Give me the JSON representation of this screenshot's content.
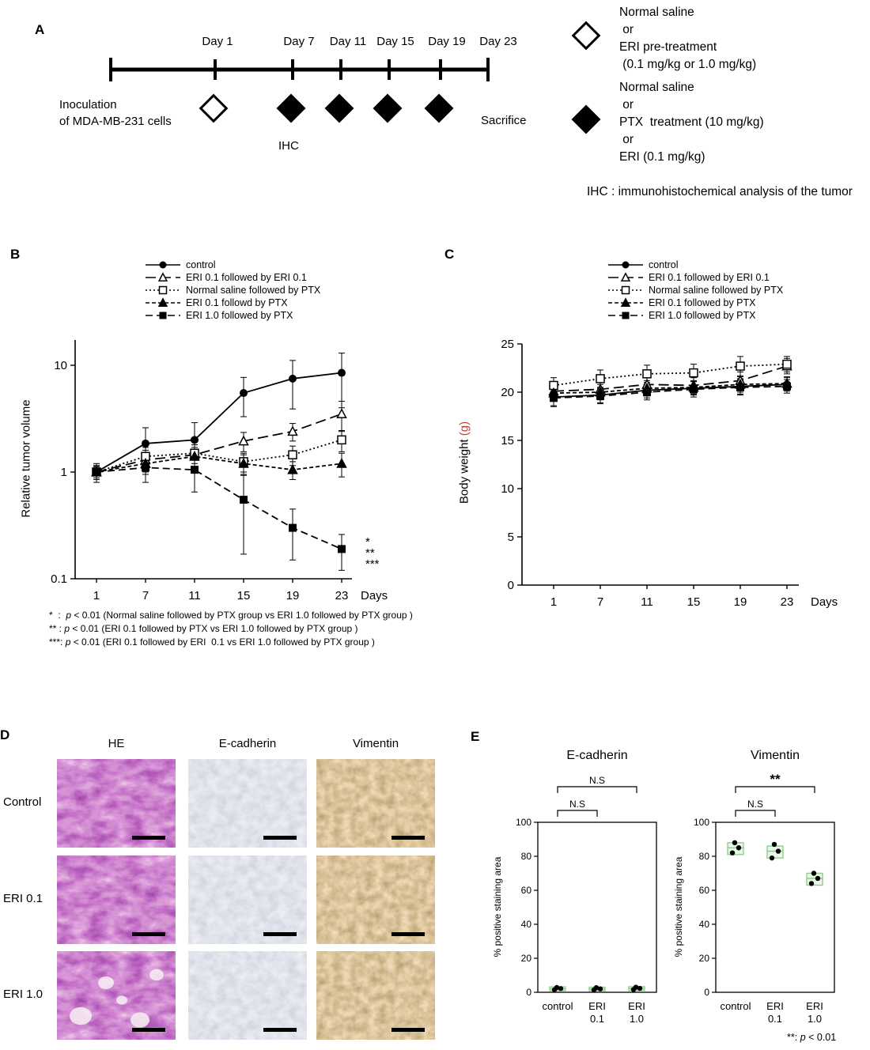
{
  "figure": {
    "panel_a": {
      "label": "A",
      "day_labels": [
        "Day 1",
        "Day 7",
        "Day 11",
        "Day 15",
        "Day 19",
        "Day 23"
      ],
      "inoculation_line1": "Inoculation",
      "inoculation_line2": "of MDA-MB-231 cells",
      "ihc": "IHC",
      "sacrifice": "Sacrifice",
      "legend_open": [
        "Normal saline",
        " or",
        "ERI pre-treatment",
        " (0.1 mg/kg or 1.0 mg/kg)"
      ],
      "legend_filled": [
        "Normal saline",
        " or",
        "PTX  treatment (10 mg/kg)",
        " or",
        "ERI (0.1 mg/kg)"
      ],
      "ihc_note": "IHC : immunohistochemical analysis of the tumor"
    },
    "panel_b": {
      "label": "B",
      "ylabel": "Relative tumor volume",
      "footnotes": [
        {
          "sym": "*  :  ",
          "p": "p",
          "rest": " < 0.01 (Normal saline followed by PTX group vs ERI 1.0 followed by PTX group )"
        },
        {
          "sym": "** : ",
          "p": "p",
          "rest": " < 0.01 (ERI 0.1 followed by PTX vs ERI 1.0 followed by PTX group )"
        },
        {
          "sym": "***: ",
          "p": "p",
          "rest": " < 0.01 (ERI 0.1 followed by ERI  0.1 vs ERI 1.0 followed by PTX group )"
        }
      ]
    },
    "panel_c": {
      "label": "C",
      "ylabel_main": "Body weight ",
      "ylabel_unit": "(g)"
    },
    "panel_d": {
      "label": "D",
      "col_headers": [
        "HE",
        "E-cadherin",
        "Vimentin"
      ],
      "row_labels": [
        "Control",
        "ERI 0.1",
        "ERI 1.0"
      ]
    },
    "panel_e": {
      "label": "E",
      "footnote": {
        "sym": "**: ",
        "p": "p",
        "rest": " < 0.01"
      }
    }
  },
  "chart_data": [
    {
      "id": "tumor-volume",
      "type": "line",
      "title": "",
      "xlabel": "Days",
      "ylabel": "Relative tumor volume",
      "x": [
        1,
        7,
        11,
        15,
        19,
        23
      ],
      "yscale": "log",
      "ylim": [
        0.1,
        15
      ],
      "yticks": [
        10,
        1,
        0.1
      ],
      "series": [
        {
          "name": "control",
          "marker": "circle-filled",
          "dash": "solid",
          "values": [
            1.0,
            1.85,
            2.0,
            5.5,
            7.5,
            8.5
          ],
          "errors": [
            0.2,
            0.75,
            0.9,
            2.2,
            3.6,
            4.5
          ]
        },
        {
          "name": "ERI 0.1 followed by ERI 0.1",
          "marker": "triangle-open",
          "dash": "long",
          "values": [
            1.0,
            1.3,
            1.45,
            1.95,
            2.4,
            3.5
          ],
          "errors": [
            0.15,
            0.3,
            0.35,
            0.4,
            0.45,
            1.1
          ]
        },
        {
          "name": "Normal saline followed by PTX",
          "marker": "square-open",
          "dash": "dotted",
          "values": [
            1.0,
            1.4,
            1.5,
            1.25,
            1.45,
            2.0
          ],
          "errors": [
            0.15,
            0.3,
            0.3,
            0.25,
            0.3,
            0.45
          ]
        },
        {
          "name": "ERI 0.1 followd by PTX",
          "marker": "triangle-filled",
          "dash": "short",
          "values": [
            1.0,
            1.2,
            1.4,
            1.2,
            1.05,
            1.2
          ],
          "errors": [
            0.12,
            0.25,
            0.3,
            0.25,
            0.2,
            0.3
          ]
        },
        {
          "name": "ERI 1.0 followed by PTX",
          "marker": "square-filled",
          "dash": "med",
          "values": [
            1.0,
            1.1,
            1.05,
            0.55,
            0.3,
            0.19
          ],
          "errors": [
            0.12,
            0.3,
            0.4,
            0.38,
            0.15,
            0.07
          ]
        }
      ],
      "annotations": [
        "*",
        "**",
        "***"
      ]
    },
    {
      "id": "body-weight",
      "type": "line",
      "title": "",
      "xlabel": "Days",
      "ylabel": "Body weight (g)",
      "x": [
        1,
        7,
        11,
        15,
        19,
        23
      ],
      "yscale": "linear",
      "ylim": [
        0,
        25
      ],
      "yticks": [
        25,
        20,
        15,
        10,
        5,
        0
      ],
      "series": [
        {
          "name": "control",
          "marker": "circle-filled",
          "dash": "solid",
          "values": [
            19.5,
            19.7,
            20.2,
            20.4,
            20.6,
            20.8
          ],
          "errors": [
            0.9,
            0.8,
            0.8,
            0.7,
            0.8,
            0.7
          ]
        },
        {
          "name": "ERI 0.1 followed by ERI 0.1",
          "marker": "triangle-open",
          "dash": "long",
          "values": [
            20.1,
            20.3,
            20.8,
            20.7,
            21.2,
            22.7
          ],
          "errors": [
            0.8,
            0.8,
            0.9,
            0.8,
            0.9,
            0.8
          ]
        },
        {
          "name": "Normal saline followed by PTX",
          "marker": "square-open",
          "dash": "dotted",
          "values": [
            20.7,
            21.4,
            21.9,
            22.0,
            22.7,
            22.9
          ],
          "errors": [
            0.8,
            0.9,
            0.9,
            0.9,
            1.0,
            0.8
          ]
        },
        {
          "name": "ERI 0.1 followed by PTX",
          "marker": "triangle-filled",
          "dash": "short",
          "values": [
            19.9,
            20.0,
            20.4,
            20.5,
            20.8,
            20.9
          ],
          "errors": [
            0.8,
            0.8,
            0.8,
            0.7,
            0.8,
            0.7
          ]
        },
        {
          "name": "ERI 1.0 followed by PTX",
          "marker": "square-filled",
          "dash": "med",
          "values": [
            19.4,
            19.6,
            20.0,
            20.3,
            20.5,
            20.6
          ],
          "errors": [
            0.9,
            0.8,
            0.8,
            0.8,
            0.8,
            0.7
          ]
        }
      ]
    },
    {
      "id": "ecadherin-staining",
      "type": "scatter",
      "title": "E-cadherin",
      "ylabel": "% positive staining area",
      "ylim": [
        0,
        100
      ],
      "yticks": [
        0,
        20,
        40,
        60,
        80,
        100
      ],
      "categories": [
        [
          "control"
        ],
        [
          "ERI",
          "0.1"
        ],
        [
          "ERI",
          "1.0"
        ]
      ],
      "points": [
        [
          1.5,
          2.2,
          2.8
        ],
        [
          1.4,
          2.0,
          2.7
        ],
        [
          1.6,
          2.3,
          3.0
        ]
      ],
      "box": [
        {
          "lo": 1.0,
          "hi": 3.2,
          "med": 2.1
        },
        {
          "lo": 0.9,
          "hi": 3.0,
          "med": 2.0
        },
        {
          "lo": 1.1,
          "hi": 3.3,
          "med": 2.2
        }
      ],
      "brackets": [
        {
          "from": 0,
          "to": 1,
          "label": "N.S",
          "level": 1
        },
        {
          "from": 0,
          "to": 2,
          "label": "N.S",
          "level": 2
        }
      ]
    },
    {
      "id": "vimentin-staining",
      "type": "scatter",
      "title": "Vimentin",
      "ylabel": "% positive staining area",
      "ylim": [
        0,
        100
      ],
      "yticks": [
        0,
        20,
        40,
        60,
        80,
        100
      ],
      "categories": [
        [
          "control"
        ],
        [
          "ERI",
          "0.1"
        ],
        [
          "ERI",
          "1.0"
        ]
      ],
      "points": [
        [
          82,
          85,
          88
        ],
        [
          79,
          83,
          87
        ],
        [
          64,
          67,
          70
        ]
      ],
      "box": [
        {
          "lo": 81,
          "hi": 88,
          "med": 85
        },
        {
          "lo": 79,
          "hi": 86,
          "med": 83
        },
        {
          "lo": 63,
          "hi": 70,
          "med": 67
        }
      ],
      "brackets": [
        {
          "from": 0,
          "to": 1,
          "label": "N.S",
          "level": 1
        },
        {
          "from": 0,
          "to": 2,
          "label": "**",
          "level": 2
        }
      ]
    }
  ]
}
